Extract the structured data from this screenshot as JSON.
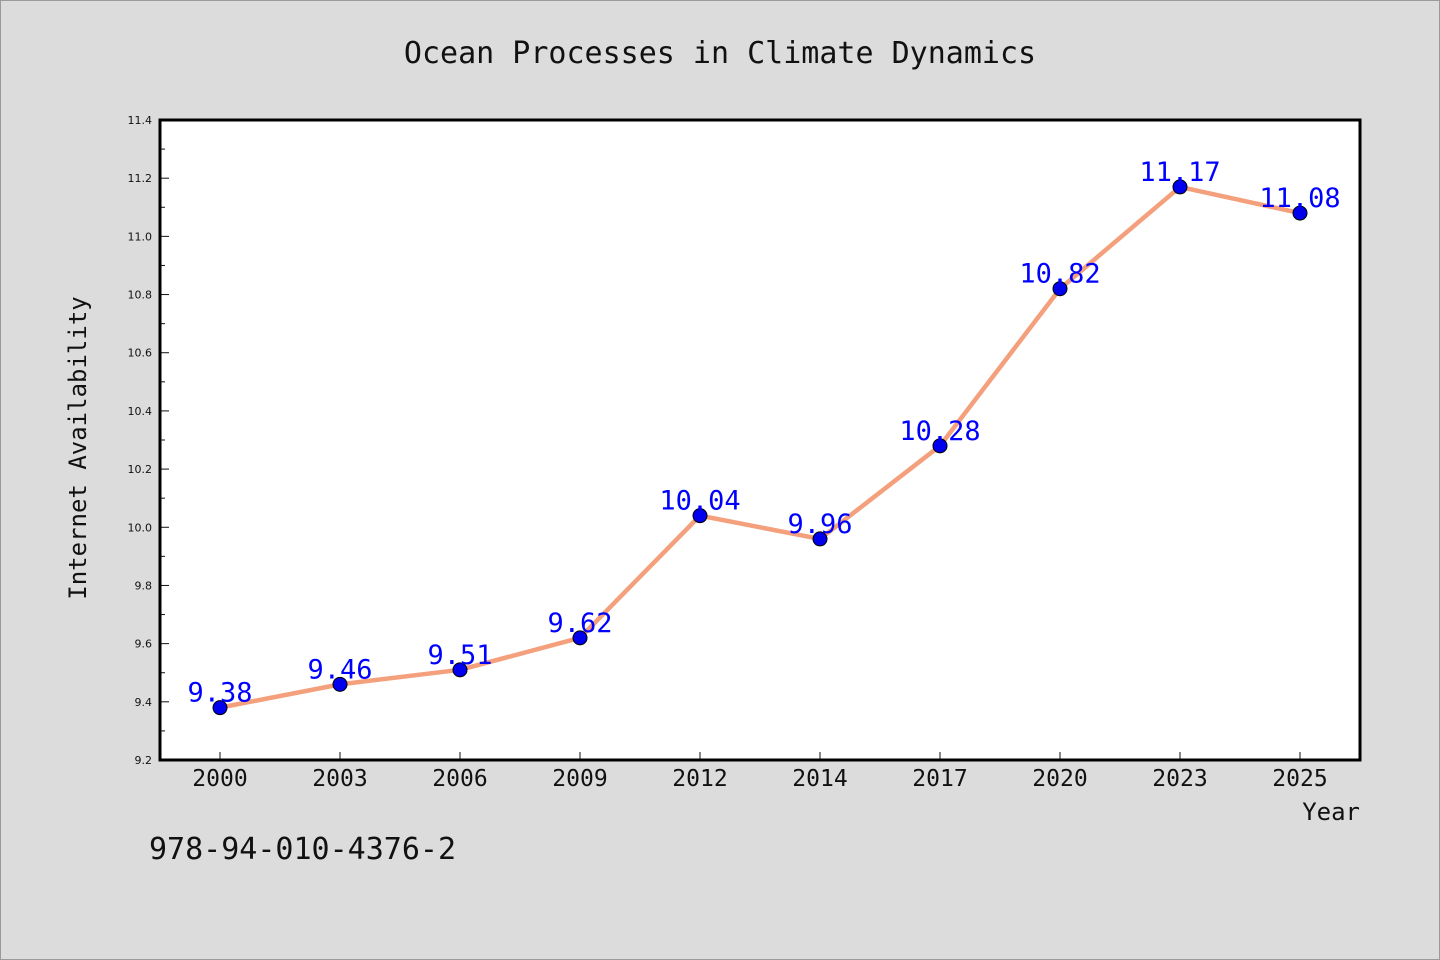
{
  "chart_data": {
    "type": "line",
    "title": "Ocean Processes in Climate Dynamics",
    "xlabel": "Year",
    "ylabel": "Internet Availability",
    "categories": [
      "2000",
      "2003",
      "2006",
      "2009",
      "2012",
      "2014",
      "2017",
      "2020",
      "2023",
      "2025"
    ],
    "series": [
      {
        "values": [
          9.38,
          9.46,
          9.51,
          9.62,
          10.04,
          9.96,
          10.28,
          10.82,
          11.17,
          11.08
        ],
        "data_labels": [
          "9.38",
          "9.46",
          "9.51",
          "9.62",
          "10.04",
          "9.96",
          "10.28",
          "10.82",
          "11.17",
          "11.08"
        ]
      }
    ],
    "ylim": [
      9.2,
      11.4
    ],
    "yticks": [
      "9.2",
      "9.4",
      "9.6",
      "9.8",
      "10.0",
      "10.2",
      "10.4",
      "10.6",
      "10.8",
      "11.0",
      "11.2",
      "11.4"
    ],
    "grid": false,
    "legend": "none",
    "colors": {
      "line": "#f4a07c",
      "marker": "#0000ee",
      "data_label": "#0000ff",
      "background": "#dcdcdc",
      "plot_area": "#ffffff"
    }
  },
  "footer": {
    "code": "978-94-010-4376-2"
  }
}
